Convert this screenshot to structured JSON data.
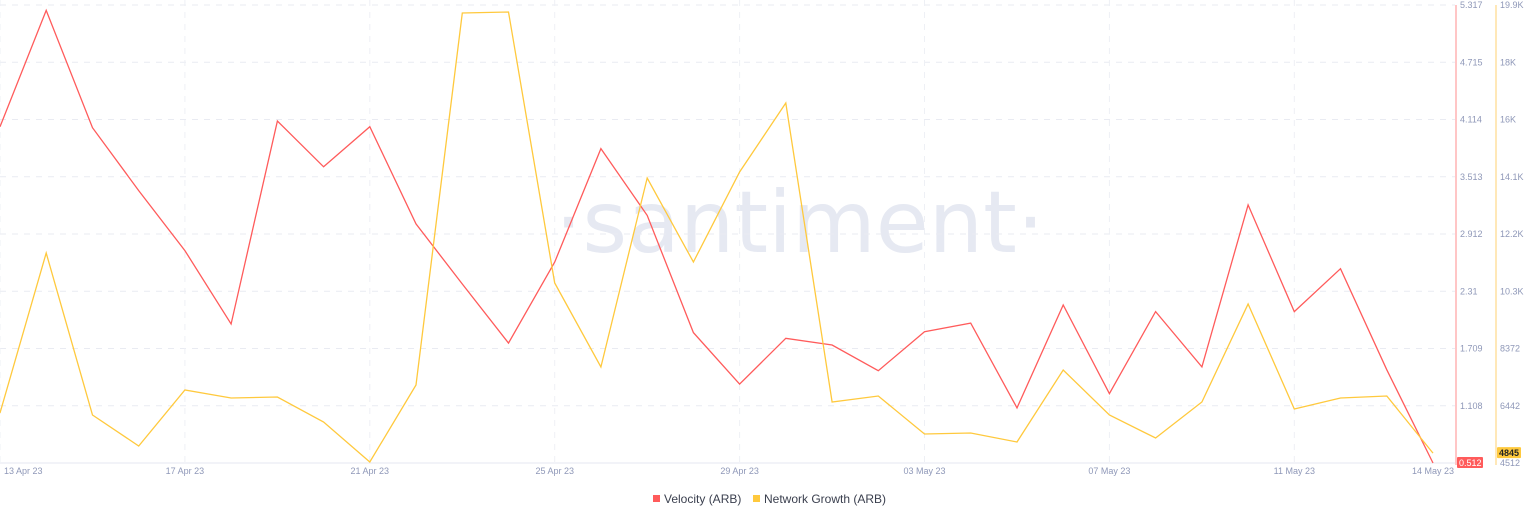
{
  "watermark": "·santiment·",
  "chart_data": {
    "type": "line",
    "x": [
      "2023-04-13",
      "2023-04-14",
      "2023-04-15",
      "2023-04-16",
      "2023-04-17",
      "2023-04-18",
      "2023-04-19",
      "2023-04-20",
      "2023-04-21",
      "2023-04-22",
      "2023-04-23",
      "2023-04-24",
      "2023-04-25",
      "2023-04-26",
      "2023-04-27",
      "2023-04-28",
      "2023-04-29",
      "2023-04-30",
      "2023-05-01",
      "2023-05-02",
      "2023-05-03",
      "2023-05-04",
      "2023-05-05",
      "2023-05-06",
      "2023-05-07",
      "2023-05-08",
      "2023-05-09",
      "2023-05-10",
      "2023-05-11",
      "2023-05-12",
      "2023-05-13",
      "2023-05-14"
    ],
    "x_ticks": [
      {
        "date": "2023-04-13",
        "label": "13 Apr 23"
      },
      {
        "date": "2023-04-17",
        "label": "17 Apr 23"
      },
      {
        "date": "2023-04-21",
        "label": "21 Apr 23"
      },
      {
        "date": "2023-04-25",
        "label": "25 Apr 23"
      },
      {
        "date": "2023-04-29",
        "label": "29 Apr 23"
      },
      {
        "date": "2023-05-03",
        "label": "03 May 23"
      },
      {
        "date": "2023-05-07",
        "label": "07 May 23"
      },
      {
        "date": "2023-05-11",
        "label": "11 May 23"
      },
      {
        "date": "2023-05-14",
        "label": "14 May 23"
      }
    ],
    "series": [
      {
        "name": "Velocity (ARB)",
        "color": "#ff5b5b",
        "axis": "right-1",
        "ylim": [
          0.512,
          5.317
        ],
        "ticks": [
          "5.317",
          "4.715",
          "4.114",
          "3.513",
          "2.912",
          "2.31",
          "1.709",
          "1.108"
        ],
        "last_label": "0.512",
        "values": [
          4.04,
          5.26,
          4.03,
          3.37,
          2.74,
          1.97,
          4.1,
          3.62,
          4.04,
          3.02,
          2.39,
          1.77,
          2.62,
          3.81,
          3.11,
          1.88,
          1.34,
          1.82,
          1.75,
          1.48,
          1.89,
          1.98,
          1.09,
          2.17,
          1.24,
          2.1,
          1.52,
          3.22,
          2.1,
          2.55,
          1.49,
          0.512
        ]
      },
      {
        "name": "Network Growth (ARB)",
        "color": "#ffc93d",
        "axis": "right-2",
        "ylim": [
          4512,
          19900
        ],
        "ticks": [
          "19.9K",
          "18K",
          "16K",
          "14.1K",
          "12.2K",
          "10.3K",
          "8372",
          "6442",
          "4512"
        ],
        "last_label": "4845",
        "values": [
          6192,
          11568,
          6125,
          5083,
          6965,
          6696,
          6730,
          5890,
          4546,
          7133,
          19632,
          19666,
          10560,
          7738,
          14088,
          11266,
          14290,
          16608,
          6562,
          6763,
          5486,
          5520,
          5218,
          7637,
          6125,
          5352,
          6562,
          9854,
          6326,
          6696,
          6763,
          4845
        ]
      }
    ],
    "grid": true,
    "legend": "bottom-center"
  }
}
